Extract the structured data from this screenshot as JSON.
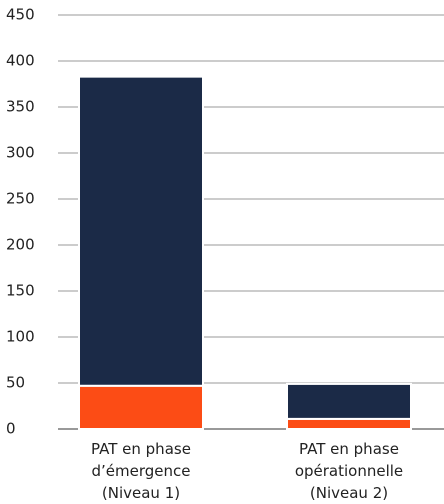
{
  "chart_data": {
    "type": "stacked_bar",
    "categories": [
      "PAT en phase\nd’émergence\n(Niveau 1)",
      "PAT en phase\nopérationnelle\n(Niveau 2)"
    ],
    "series": [
      {
        "color": "#fc4c15",
        "values": [
          47,
          11
        ]
      },
      {
        "color": "#1b2a47",
        "values": [
          336,
          38
        ]
      }
    ],
    "ylim": [
      0,
      450
    ],
    "yticks": [
      0,
      50,
      100,
      150,
      200,
      250,
      300,
      350,
      400,
      450
    ],
    "grid": true
  }
}
